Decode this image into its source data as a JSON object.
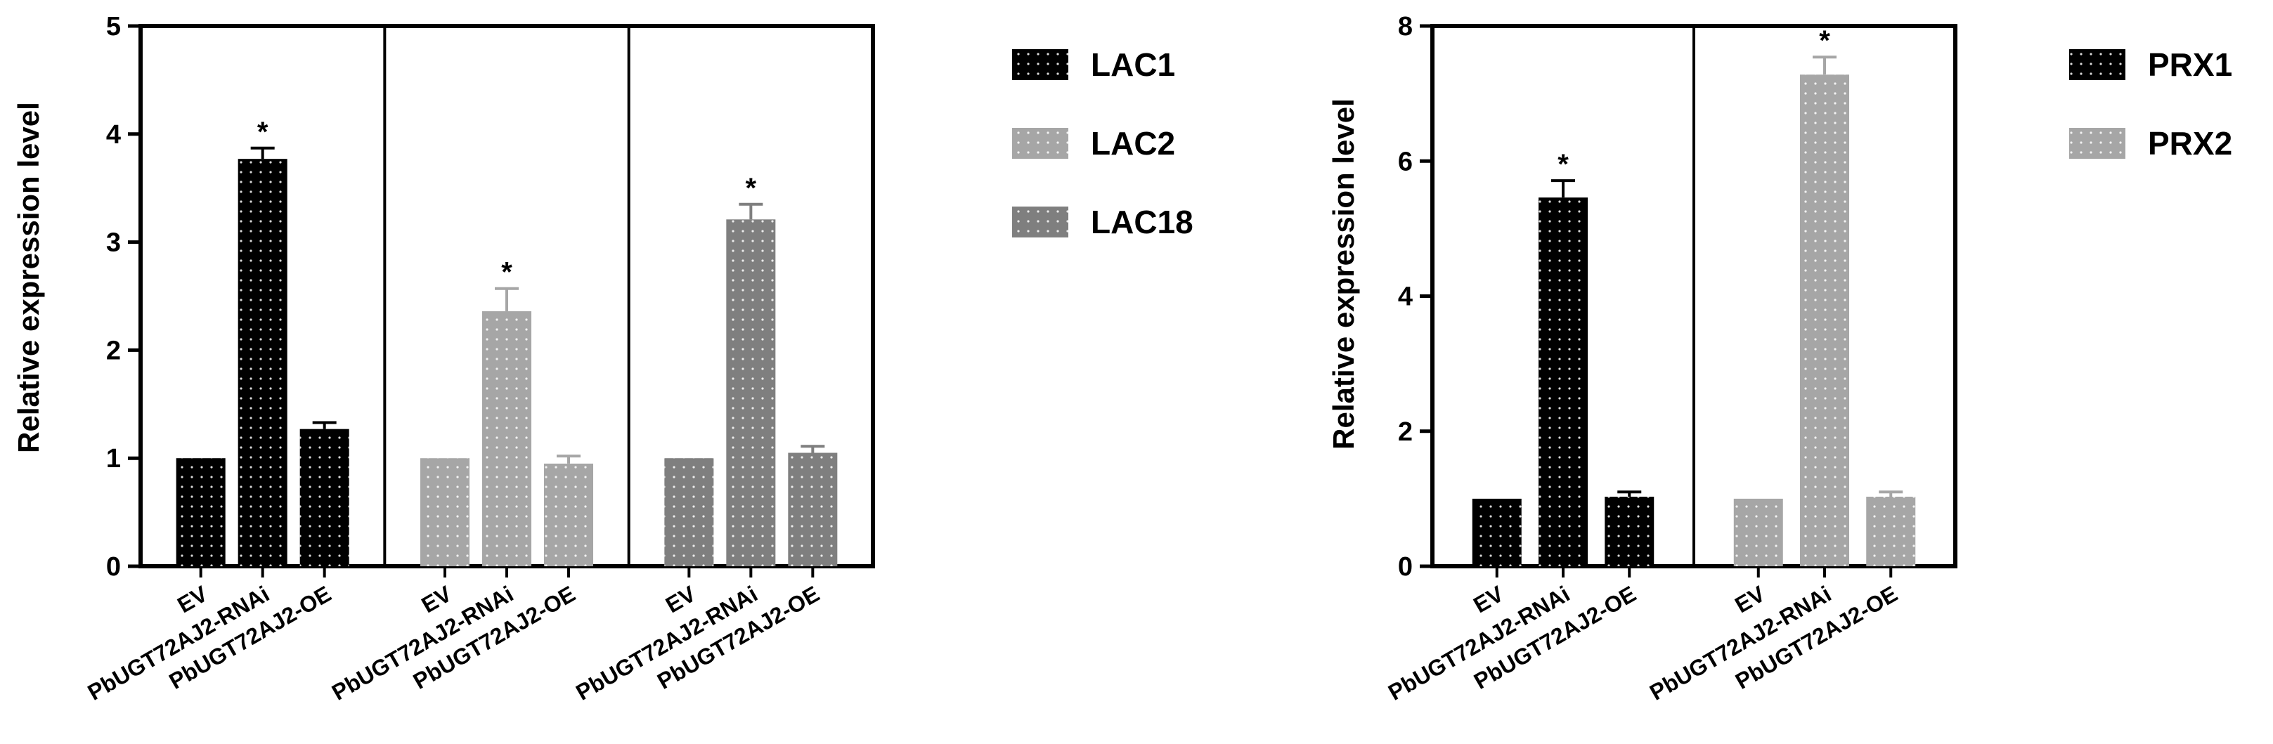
{
  "chart_data": [
    {
      "type": "bar",
      "ylabel": "Relative expression level",
      "ylim": [
        0,
        5
      ],
      "yticks": [
        "0",
        "1",
        "2",
        "3",
        "4",
        "5"
      ],
      "categories": [
        "EV",
        "PbUGT72AJ2-RNAi",
        "PbUGT72AJ2-OE"
      ],
      "series": [
        {
          "name": "LAC1",
          "color": "#000000",
          "values": [
            1.0,
            3.77,
            1.27
          ],
          "errors": [
            0.0,
            0.1,
            0.06
          ],
          "significance": [
            "",
            "*",
            ""
          ]
        },
        {
          "name": "LAC2",
          "color": "#a6a6a6",
          "values": [
            1.0,
            2.36,
            0.95
          ],
          "errors": [
            0.0,
            0.21,
            0.07
          ],
          "significance": [
            "",
            "*",
            ""
          ]
        },
        {
          "name": "LAC18",
          "color": "#7f7f7f",
          "values": [
            1.0,
            3.21,
            1.05
          ],
          "errors": [
            0.0,
            0.14,
            0.06
          ],
          "significance": [
            "",
            "*",
            ""
          ]
        }
      ],
      "legend": "right"
    },
    {
      "type": "bar",
      "ylabel": "Relative expression level",
      "ylim": [
        0,
        8
      ],
      "yticks": [
        "0",
        "2",
        "4",
        "6",
        "8"
      ],
      "categories": [
        "EV",
        "PbUGT72AJ2-RNAi",
        "PbUGT72AJ2-OE"
      ],
      "series": [
        {
          "name": "PRX1",
          "color": "#000000",
          "values": [
            1.0,
            5.46,
            1.03
          ],
          "errors": [
            0.0,
            0.25,
            0.07
          ],
          "significance": [
            "",
            "*",
            ""
          ]
        },
        {
          "name": "PRX2",
          "color": "#a6a6a6",
          "values": [
            1.0,
            7.28,
            1.03
          ],
          "errors": [
            0.0,
            0.26,
            0.07
          ],
          "significance": [
            "",
            "*",
            ""
          ]
        }
      ],
      "legend": "right"
    }
  ]
}
